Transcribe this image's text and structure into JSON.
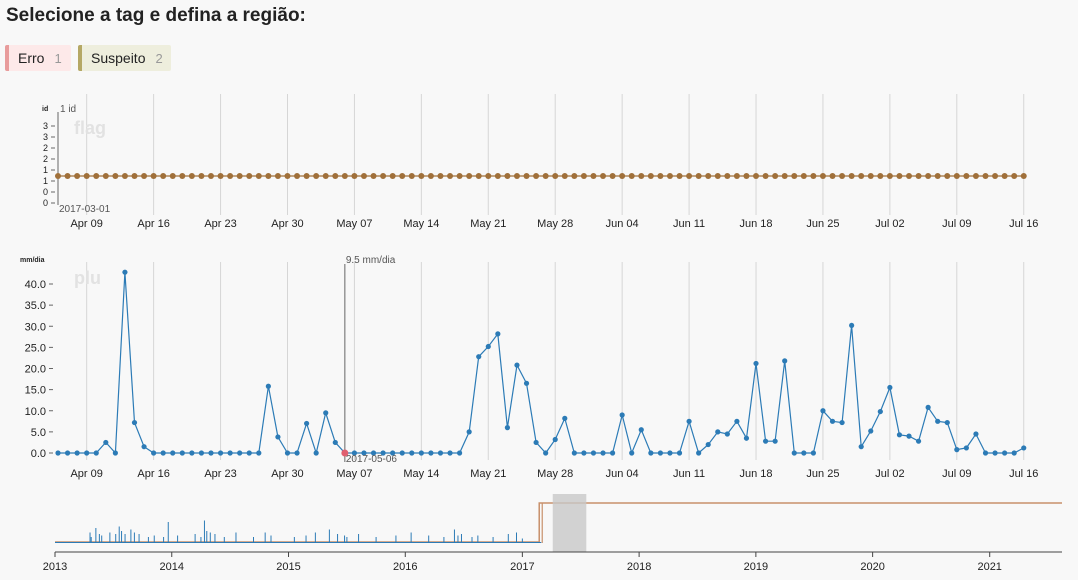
{
  "page": {
    "title": "Selecione a tag e defina a região:"
  },
  "tags": [
    {
      "label": "Erro",
      "count": "1",
      "color": "#e89c9c",
      "bg": "#fde9e9"
    },
    {
      "label": "Suspeito",
      "count": "2",
      "color": "#b5a865",
      "bg": "#eeeedd"
    }
  ],
  "chart_data": [
    {
      "type": "scatter",
      "name_label": "flag",
      "ylabel": "id",
      "yticks": [
        "0",
        "0",
        "1",
        "1",
        "2",
        "2",
        "3",
        "3"
      ],
      "ylim": [
        0,
        3.4
      ],
      "xlim": [
        "2017-04-06",
        "2017-07-20"
      ],
      "xticks": [
        "Apr 09",
        "Apr 16",
        "Apr 23",
        "Apr 30",
        "May 07",
        "May 14",
        "May 21",
        "May 28",
        "Jun 04",
        "Jun 11",
        "Jun 18",
        "Jun 25",
        "Jul 02",
        "Jul 09",
        "Jul 16"
      ],
      "annotation_value": "1 id",
      "annotation_date": "2017-03-01",
      "constant_value": 1,
      "color": "#a0703a",
      "grid": true
    },
    {
      "type": "line",
      "name_label": "plu",
      "ylabel": "mm/dia",
      "yticks": [
        "0.0",
        "5.0",
        "10.0",
        "15.0",
        "20.0",
        "25.0",
        "30.0",
        "35.0",
        "40.0"
      ],
      "ylim": [
        0,
        44
      ],
      "start_date": "2017-04-06",
      "values": [
        0,
        0,
        0,
        0,
        0,
        2.5,
        0,
        42.8,
        7.2,
        1.5,
        0,
        0,
        0,
        0,
        0,
        0,
        0,
        0,
        0,
        0,
        0,
        0,
        15.8,
        3.8,
        0,
        0,
        7,
        0,
        9.5,
        2.5,
        0,
        0,
        0,
        0,
        0,
        0,
        0,
        0,
        0,
        0,
        0,
        0,
        0,
        5,
        22.8,
        25.2,
        28.2,
        6,
        20.8,
        16.5,
        2.5,
        0,
        3.2,
        8.2,
        0,
        0,
        0,
        0,
        0,
        9,
        0,
        5.5,
        0,
        0,
        0,
        0,
        7.5,
        0,
        2,
        5,
        4.5,
        7.5,
        3.5,
        21.2,
        2.8,
        2.8,
        21.8,
        0,
        0,
        0,
        10,
        7.5,
        7.2,
        30.2,
        1.5,
        5.2,
        9.8,
        15.5,
        4.3,
        4,
        2.8,
        10.8,
        7.5,
        7.2,
        0.8,
        1.2,
        4.5,
        0,
        0,
        0,
        0,
        1.2
      ],
      "xticks": [
        "Apr 09",
        "Apr 16",
        "Apr 23",
        "Apr 30",
        "May 07",
        "May 14",
        "May 21",
        "May 28",
        "Jun 04",
        "Jun 11",
        "Jun 18",
        "Jun 25",
        "Jul 02",
        "Jul 09",
        "Jul 16"
      ],
      "annotation_value": "9.5 mm/dia",
      "annotation_date": "2017-05-06",
      "color": "#2c7bb6",
      "highlight_color": "#e06070",
      "grid": true
    },
    {
      "type": "area",
      "xticks": [
        "2013",
        "2014",
        "2015",
        "2016",
        "2017",
        "2018",
        "2019",
        "2020",
        "2021"
      ],
      "series_color": "#2c7bb6",
      "flag_color": "#c8906a",
      "brush_range": [
        "2017-04-06",
        "2017-07-20"
      ],
      "spikes": [
        [
          2013.3,
          0.35
        ],
        [
          2013.31,
          0.2
        ],
        [
          2013.35,
          0.5
        ],
        [
          2013.38,
          0.3
        ],
        [
          2013.4,
          0.25
        ],
        [
          2013.47,
          0.35
        ],
        [
          2013.52,
          0.3
        ],
        [
          2013.55,
          0.55
        ],
        [
          2013.57,
          0.4
        ],
        [
          2013.6,
          0.3
        ],
        [
          2013.65,
          0.45
        ],
        [
          2013.68,
          0.35
        ],
        [
          2013.72,
          0.3
        ],
        [
          2013.8,
          0.2
        ],
        [
          2013.85,
          0.25
        ],
        [
          2013.93,
          0.2
        ],
        [
          2013.97,
          0.7
        ],
        [
          2014.05,
          0.25
        ],
        [
          2014.2,
          0.3
        ],
        [
          2014.25,
          0.2
        ],
        [
          2014.28,
          0.75
        ],
        [
          2014.3,
          0.4
        ],
        [
          2014.33,
          0.35
        ],
        [
          2014.37,
          0.3
        ],
        [
          2014.45,
          0.2
        ],
        [
          2014.55,
          0.35
        ],
        [
          2014.7,
          0.2
        ],
        [
          2014.8,
          0.35
        ],
        [
          2014.85,
          0.25
        ],
        [
          2015.05,
          0.2
        ],
        [
          2015.15,
          0.25
        ],
        [
          2015.23,
          0.35
        ],
        [
          2015.35,
          0.45
        ],
        [
          2015.42,
          0.3
        ],
        [
          2015.48,
          0.25
        ],
        [
          2015.5,
          0.2
        ],
        [
          2015.6,
          0.3
        ],
        [
          2015.75,
          0.2
        ],
        [
          2015.92,
          0.25
        ],
        [
          2016.05,
          0.35
        ],
        [
          2016.2,
          0.25
        ],
        [
          2016.33,
          0.2
        ],
        [
          2016.42,
          0.45
        ],
        [
          2016.45,
          0.25
        ],
        [
          2016.48,
          0.3
        ],
        [
          2016.57,
          0.2
        ],
        [
          2016.62,
          0.25
        ],
        [
          2016.75,
          0.2
        ],
        [
          2016.88,
          0.3
        ],
        [
          2016.95,
          0.35
        ],
        [
          2017.0,
          0.15
        ]
      ]
    }
  ]
}
